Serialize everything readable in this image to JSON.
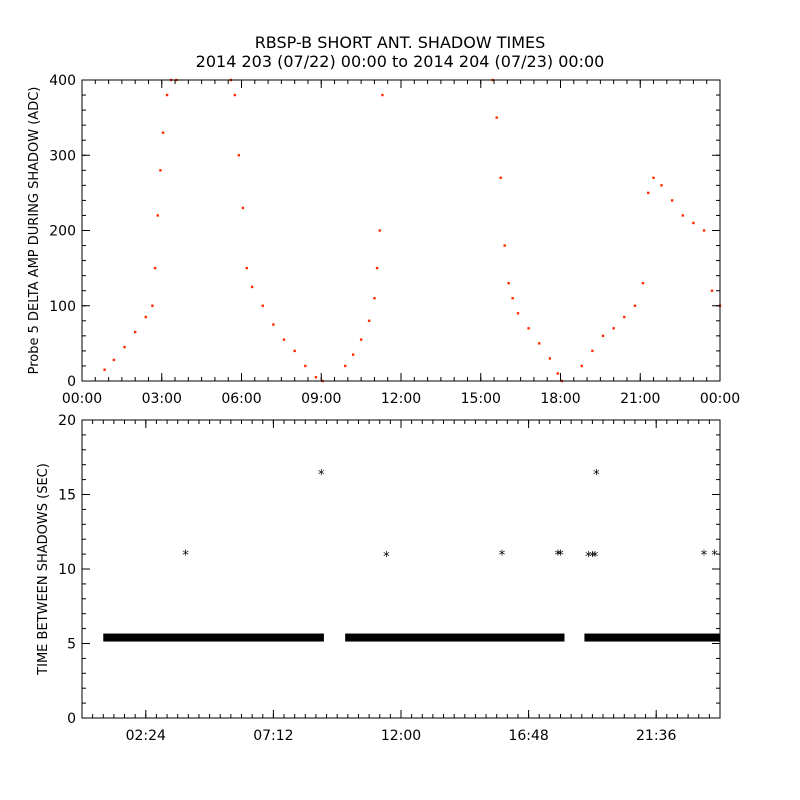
{
  "title_line1": "RBSP-B SHORT ANT. SHADOW TIMES",
  "title_line2": "2014 203 (07/22) 00:00 to 2014 204 (07/23) 00:00",
  "colors": {
    "points_top": "#ff2a00",
    "points_bottom": "#000000",
    "axes": "#000000"
  },
  "chart_data": [
    {
      "type": "scatter",
      "title": "RBSP-B SHORT ANT. SHADOW TIMES",
      "ylabel": "Probe 5 DELTA AMP DURING SHADOW (ADC)",
      "xlabel": "",
      "x_unit": "hours",
      "xlim": [
        0,
        24
      ],
      "ylim": [
        0,
        400
      ],
      "x_ticks": [
        0,
        3,
        6,
        9,
        12,
        15,
        18,
        21,
        24
      ],
      "x_tick_labels": [
        "00:00",
        "03:00",
        "06:00",
        "09:00",
        "12:00",
        "15:00",
        "18:00",
        "21:00",
        "00:00"
      ],
      "y_ticks": [
        0,
        100,
        200,
        300,
        400
      ],
      "y_tick_labels": [
        "0",
        "100",
        "200",
        "300",
        "400"
      ],
      "series": [
        {
          "color": "#ff2a00",
          "x": [
            0.85,
            1.2,
            1.6,
            2.0,
            2.4,
            2.65,
            2.75,
            2.85,
            2.95,
            3.05,
            3.2,
            3.35,
            3.55,
            5.6,
            5.75,
            5.9,
            6.05,
            6.2,
            6.4,
            6.8,
            7.2,
            7.6,
            8.0,
            8.4,
            8.8,
            9.05,
            9.9,
            10.2,
            10.5,
            10.8,
            11.0,
            11.1,
            11.2,
            11.3,
            15.45,
            15.6,
            15.75,
            15.9,
            16.05,
            16.2,
            16.4,
            16.8,
            17.2,
            17.6,
            17.9,
            18.05,
            18.8,
            19.2,
            19.6,
            20.0,
            20.4,
            20.8,
            21.1,
            21.3,
            21.5,
            21.8,
            22.2,
            22.6,
            23.0,
            23.4,
            23.7,
            24.0
          ],
          "y": [
            15,
            28,
            45,
            65,
            85,
            100,
            150,
            220,
            280,
            330,
            380,
            400,
            400,
            400,
            380,
            300,
            230,
            150,
            125,
            100,
            75,
            55,
            40,
            20,
            5,
            0,
            20,
            35,
            55,
            80,
            110,
            150,
            200,
            380,
            400,
            350,
            270,
            180,
            130,
            110,
            90,
            70,
            50,
            30,
            10,
            0,
            20,
            40,
            60,
            70,
            85,
            100,
            130,
            250,
            270,
            260,
            240,
            220,
            210,
            200,
            120,
            100
          ]
        }
      ]
    },
    {
      "type": "scatter",
      "title": "",
      "ylabel": "TIME BETWEEN SHADOWS (SEC)",
      "xlabel": "",
      "x_unit": "hours",
      "xlim": [
        0,
        24
      ],
      "ylim": [
        0,
        20
      ],
      "x_ticks": [
        2.4,
        7.2,
        12.0,
        16.8,
        21.6
      ],
      "x_tick_labels": [
        "02:24",
        "07:12",
        "12:00",
        "16:48",
        "21:36"
      ],
      "y_ticks": [
        0,
        5,
        10,
        15,
        20
      ],
      "y_tick_labels": [
        "0",
        "5",
        "10",
        "15",
        "20"
      ],
      "series": [
        {
          "color": "#000000",
          "segments": [
            [
              0.8,
              9.1
            ],
            [
              9.9,
              18.15
            ],
            [
              18.9,
              24.0
            ]
          ],
          "baseline_value": 5.4,
          "x": [
            3.9,
            9.0,
            11.45,
            15.8,
            17.9,
            18.0,
            19.05,
            19.2,
            19.3,
            19.35,
            23.4,
            23.8
          ],
          "y": [
            10.9,
            16.3,
            10.8,
            10.9,
            10.9,
            10.9,
            10.8,
            10.8,
            10.8,
            16.3,
            10.9,
            10.9
          ]
        }
      ]
    }
  ]
}
